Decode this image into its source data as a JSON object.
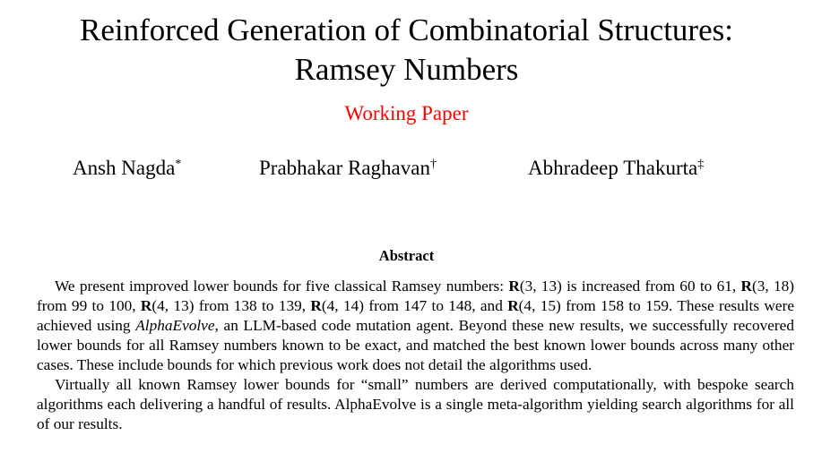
{
  "title_line1": "Reinforced Generation of Combinatorial Structures:",
  "title_line2": "Ramsey Numbers",
  "subtitle": "Working Paper",
  "authors": [
    {
      "name": "Ansh Nagda",
      "mark": "*"
    },
    {
      "name": "Prabhakar Raghavan",
      "mark": "†"
    },
    {
      "name": "Abhradeep Thakurta",
      "mark": "‡"
    }
  ],
  "abstract_heading": "Abstract",
  "abstract_paragraphs": [
    [
      {
        "t": "We present improved lower bounds for five classical Ramsey numbers: "
      },
      {
        "b": "R"
      },
      {
        "t": "(3, 13) is increased from 60 to 61, "
      },
      {
        "b": "R"
      },
      {
        "t": "(3, 18) from 99 to 100, "
      },
      {
        "b": "R"
      },
      {
        "t": "(4, 13) from 138 to 139, "
      },
      {
        "b": "R"
      },
      {
        "t": "(4, 14) from 147 to 148, and "
      },
      {
        "b": "R"
      },
      {
        "t": "(4, 15) from 158 to 159. These results were achieved using "
      },
      {
        "i": "AlphaEvolve"
      },
      {
        "t": ", an LLM-based code mutation agent. Beyond these new results, we successfully recovered lower bounds for all Ramsey numbers known to be exact, and matched the best known lower bounds across many other cases. These include bounds for which previous work does not detail the algorithms used."
      }
    ],
    [
      {
        "t": "Virtually all known Ramsey lower bounds for “small” numbers are derived computationally, with bespoke search algorithms each delivering a handful of results. AlphaEvolve is a single meta-algorithm yielding search algorithms for all of our results."
      }
    ]
  ]
}
